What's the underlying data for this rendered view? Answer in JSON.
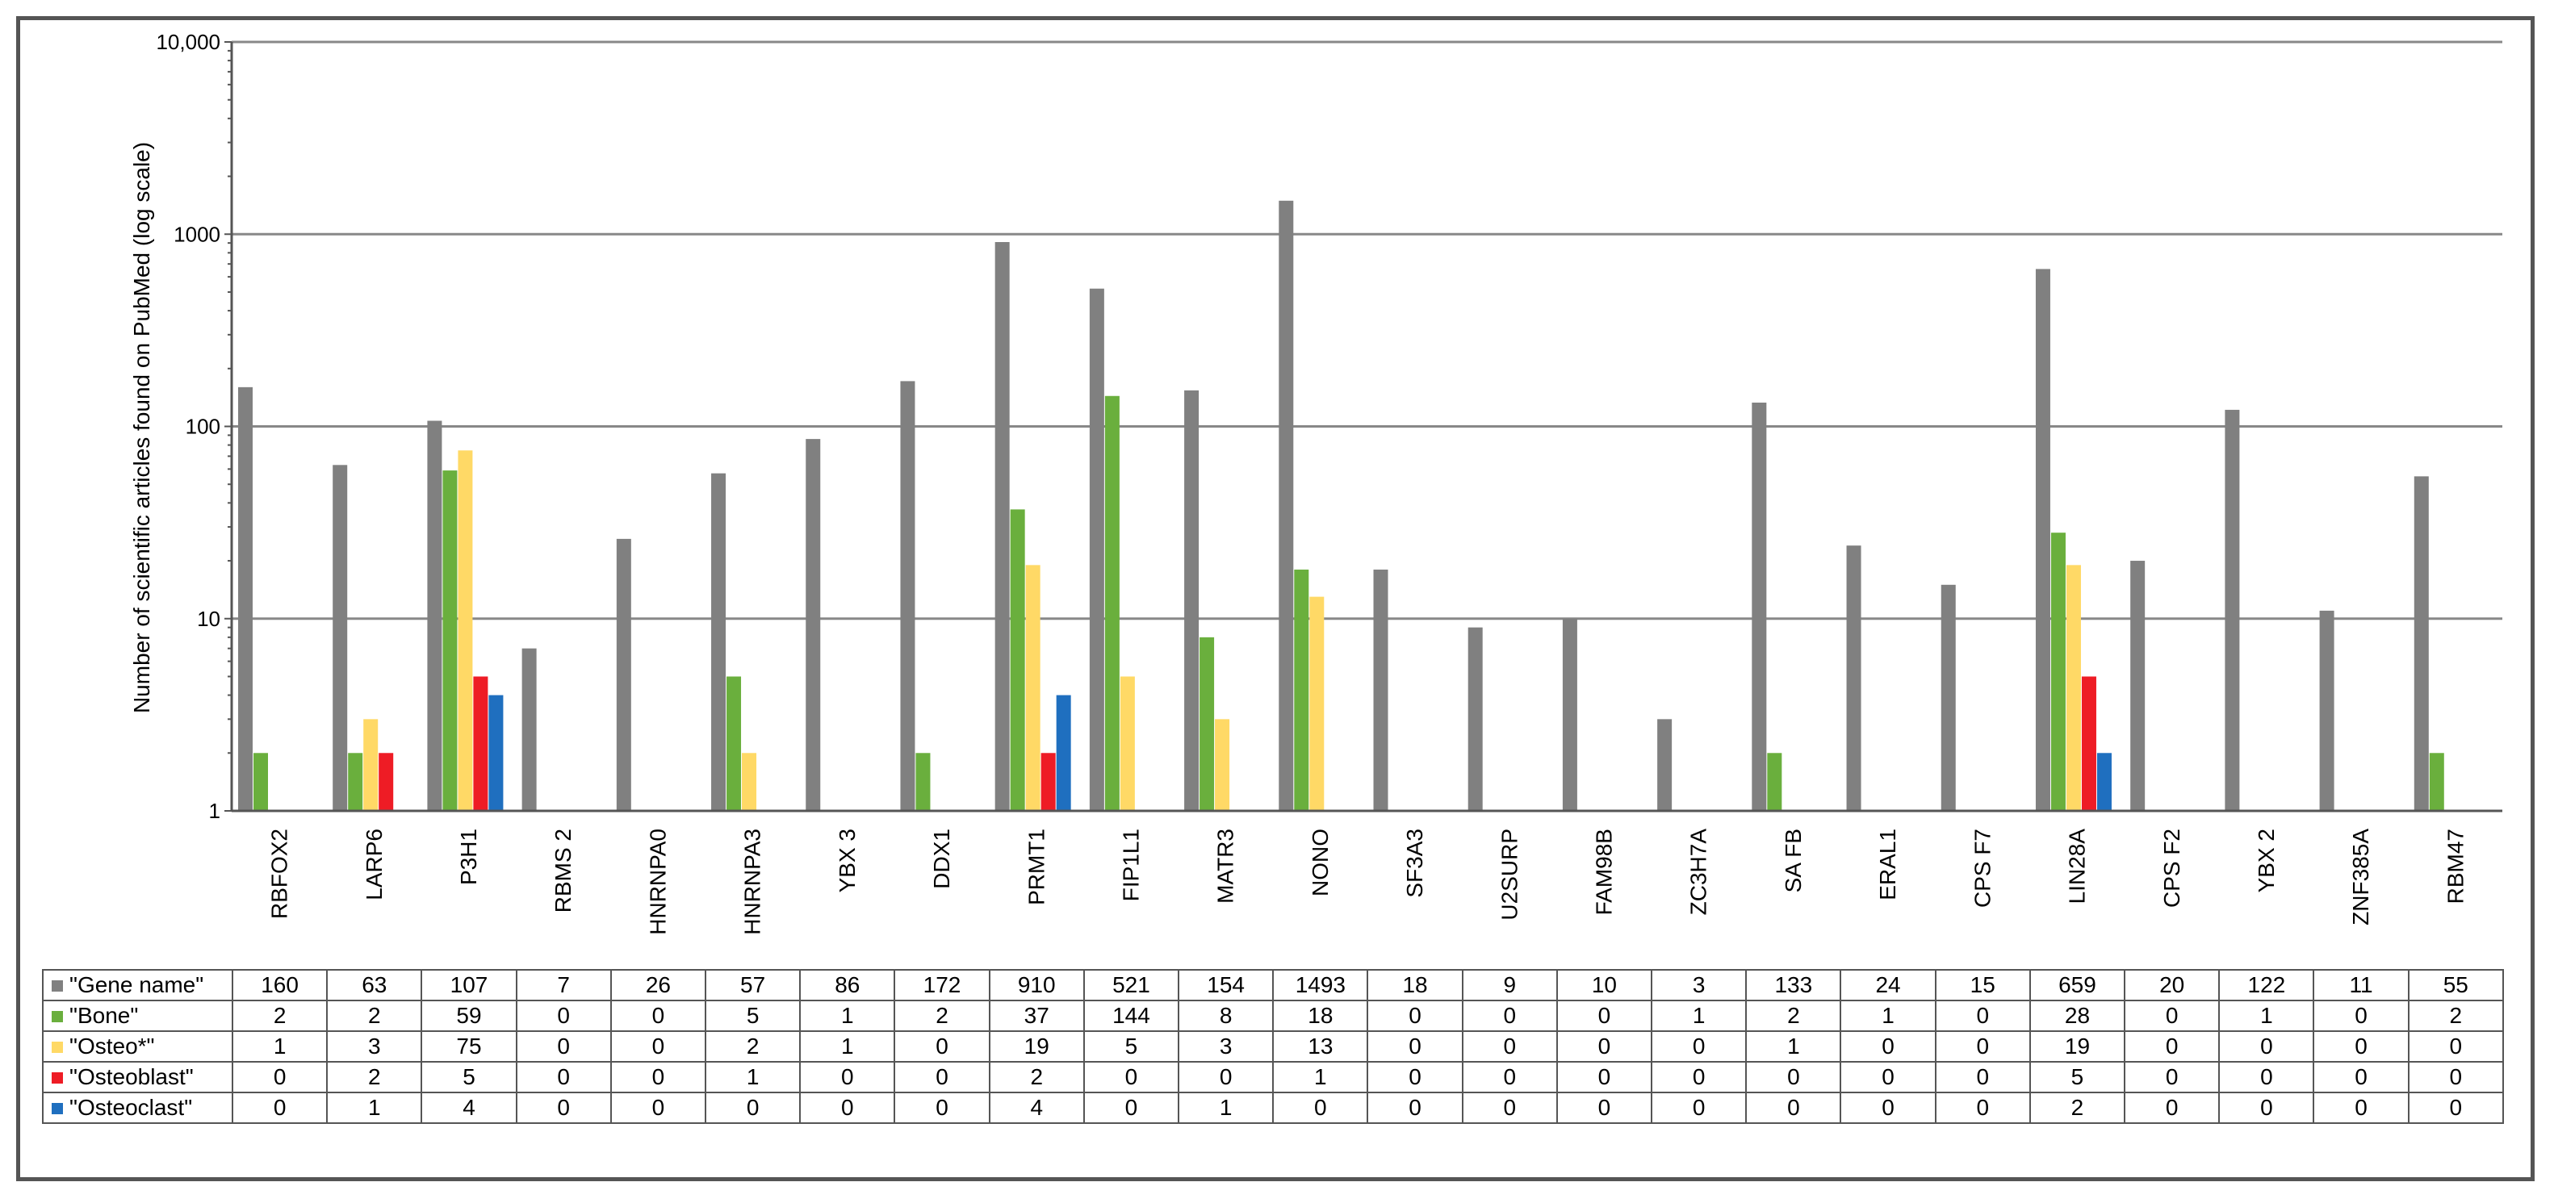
{
  "chart_data": {
    "type": "bar",
    "ylabel": "Number of scientific articles found on PubMed (log scale)",
    "yscale": "log",
    "ylim": [
      1,
      10000
    ],
    "yticks": [
      "1",
      "10",
      "100",
      "1000",
      "10,000"
    ],
    "grid": true,
    "legend": "table-below",
    "categories": [
      "RBFOX2",
      "LARP6",
      "P3H1",
      "RBMS 2",
      "HNRNPA0",
      "HNRNPA3",
      "YBX 3",
      "DDX1",
      "PRMT1",
      "FIP1L1",
      "MATR3",
      "NONO",
      "SF3A3",
      "U2SURP",
      "FAM98B",
      "ZC3H7A",
      "SA FB",
      "ERAL1",
      "CPS F7",
      "LIN28A",
      "CPS F2",
      "YBX 2",
      "ZNF385A",
      "RBM47"
    ],
    "series": [
      {
        "name": "\"Gene name\"",
        "color": "#808080",
        "values": [
          160,
          63,
          107,
          7,
          26,
          57,
          86,
          172,
          910,
          521,
          154,
          1493,
          18,
          9,
          10,
          3,
          133,
          24,
          15,
          659,
          20,
          122,
          11,
          55
        ]
      },
      {
        "name": "\"Bone\"",
        "color": "#6aaf3d",
        "values": [
          2,
          2,
          59,
          0,
          0,
          5,
          1,
          2,
          37,
          144,
          8,
          18,
          0,
          0,
          0,
          1,
          2,
          1,
          0,
          28,
          0,
          1,
          0,
          2
        ]
      },
      {
        "name": "\"Osteo*\"",
        "color": "#ffd966",
        "values": [
          1,
          3,
          75,
          0,
          0,
          2,
          1,
          0,
          19,
          5,
          3,
          13,
          0,
          0,
          0,
          0,
          1,
          0,
          0,
          19,
          0,
          0,
          0,
          0
        ]
      },
      {
        "name": "\"Osteoblast\"",
        "color": "#ee1c25",
        "values": [
          0,
          2,
          5,
          0,
          0,
          1,
          0,
          0,
          2,
          0,
          0,
          1,
          0,
          0,
          0,
          0,
          0,
          0,
          0,
          5,
          0,
          0,
          0,
          0
        ]
      },
      {
        "name": "\"Osteoclast\"",
        "color": "#1f6fbf",
        "values": [
          0,
          1,
          4,
          0,
          0,
          0,
          0,
          0,
          4,
          0,
          1,
          0,
          0,
          0,
          0,
          0,
          0,
          0,
          0,
          2,
          0,
          0,
          0,
          0
        ]
      }
    ]
  }
}
